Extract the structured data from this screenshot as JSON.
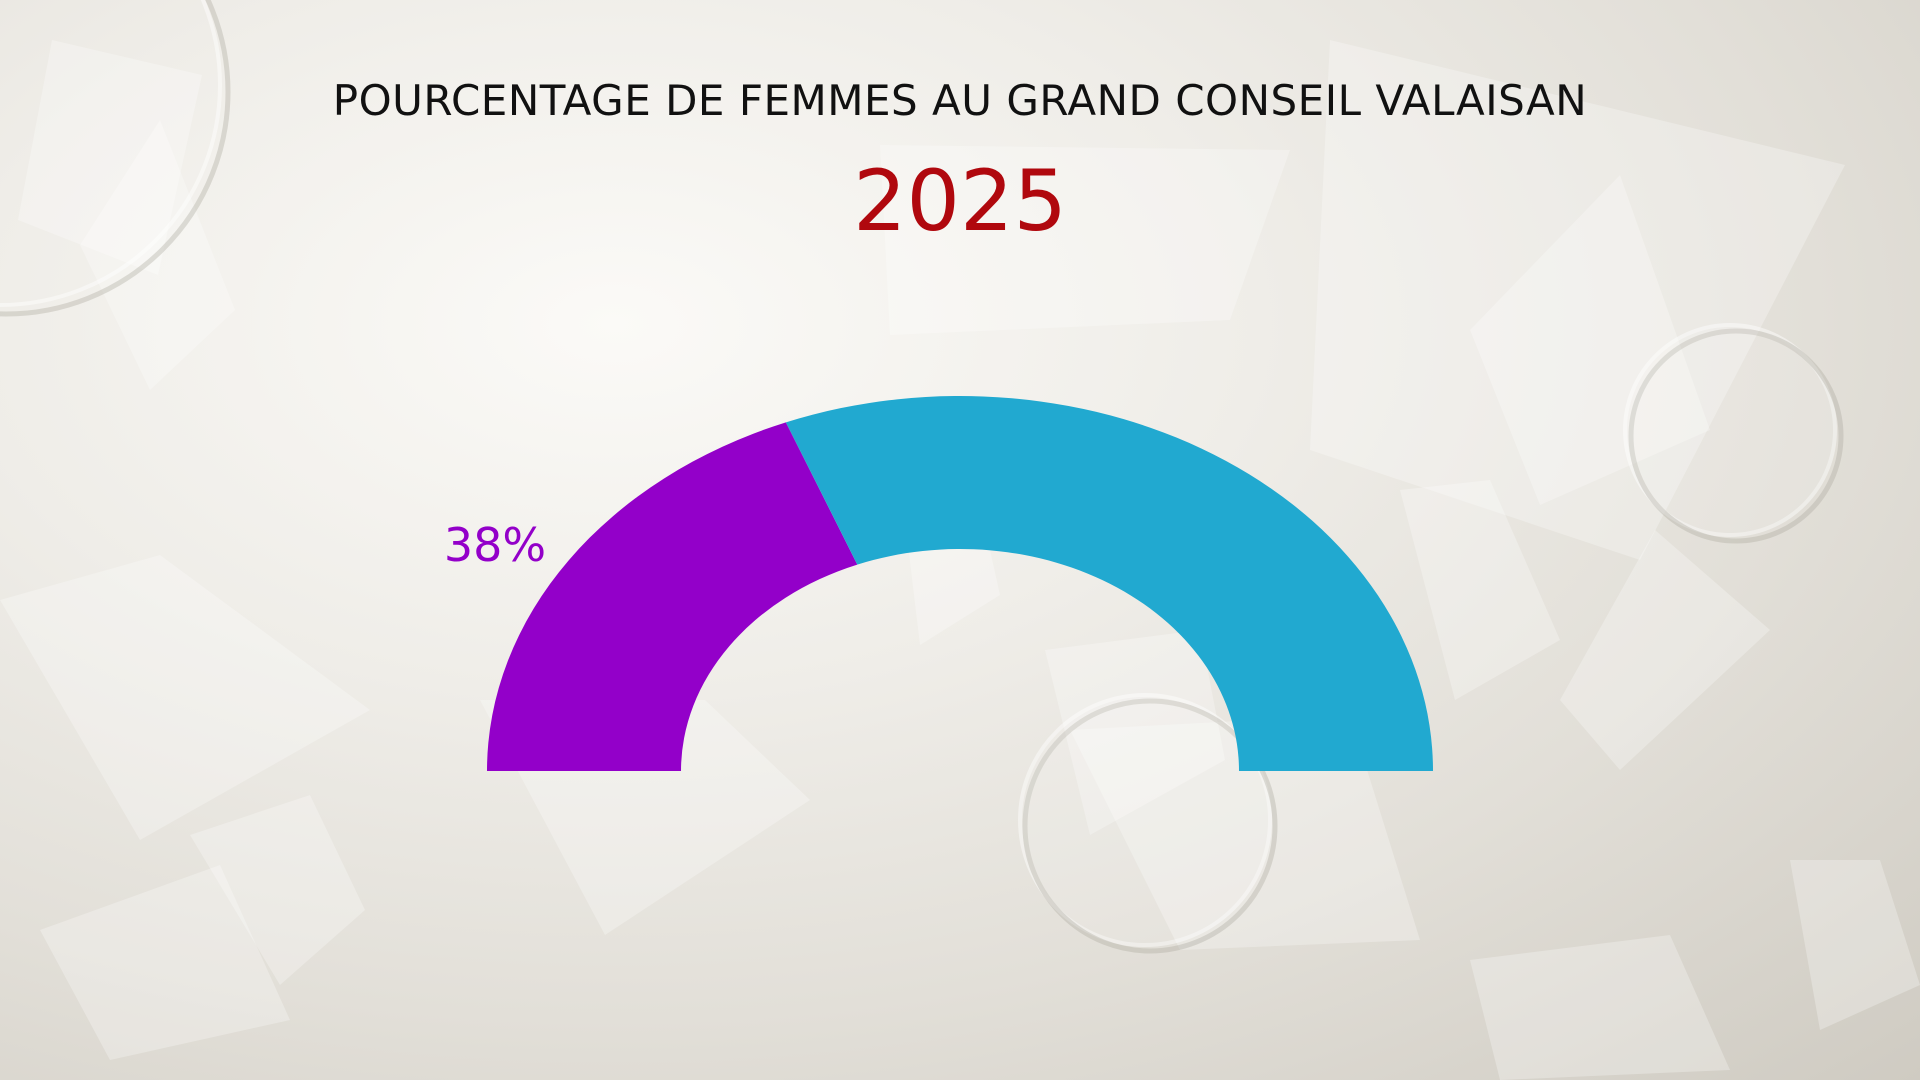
{
  "chart_data": {
    "type": "pie",
    "title": "POURCENTAGE DE FEMMES AU GRAND CONSEIL VALAISAN",
    "subtitle": "2025",
    "categories": [
      "",
      ""
    ],
    "values": [
      38,
      62
    ],
    "labels": [
      "38%",
      ""
    ],
    "colors": [
      "#9300c9",
      "#21a9d0"
    ],
    "shape": "half-donut",
    "legend": "none",
    "title_color": "#b0080e"
  }
}
